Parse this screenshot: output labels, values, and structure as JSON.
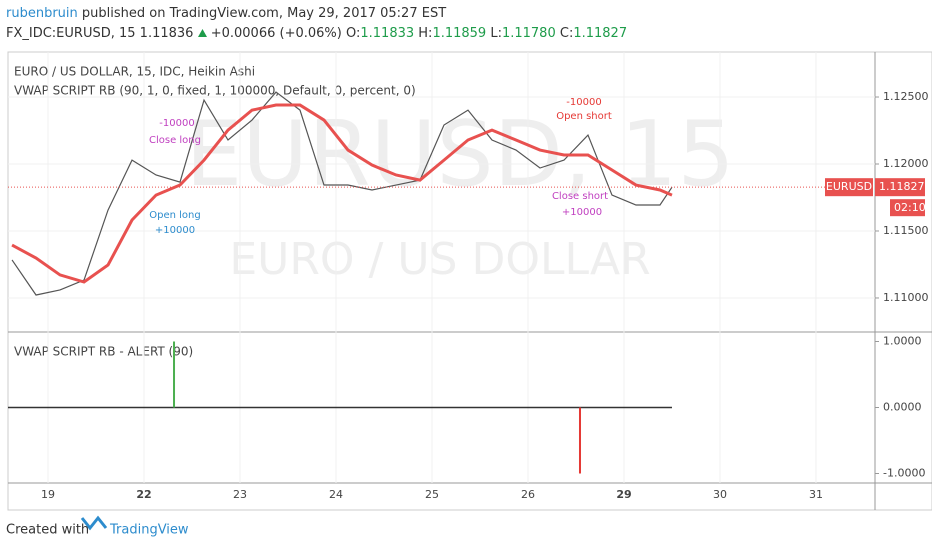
{
  "header": {
    "author": "rubenbruin",
    "published": "published on TradingView.com, May 29, 2017 05:27 EST",
    "symbol": "FX_IDC:EURUSD, 15",
    "last": "1.11836",
    "change": "+0.00066 (+0.06%)",
    "open_label": "O:",
    "open": "1.11833",
    "high_label": "H:",
    "high": "1.11859",
    "low_label": "L:",
    "low": "1.11780",
    "close_label": "C:",
    "close": "1.11827"
  },
  "chart_data": [
    {
      "type": "line",
      "title": "EURO / US DOLLAR, 15, IDC, Heikin Ashi",
      "subtitle": "VWAP SCRIPT RB (90, 1, 0, fixed, 1, 100000, Default, 0, percent, 0)",
      "watermark": "EURUSD, 15",
      "watermark_name": "EURO / US DOLLAR",
      "x": [
        -0.375,
        -0.125,
        0.125,
        0.375,
        0.625,
        0.875,
        1.125,
        1.375,
        1.625,
        1.875,
        2.125,
        2.375,
        2.625,
        2.875,
        3.125,
        3.375,
        3.625,
        3.875,
        4.125,
        4.375,
        4.625,
        4.875,
        5.125,
        5.375,
        5.625,
        5.875,
        6.125,
        6.375,
        6.5
      ],
      "series": [
        {
          "color": "#555555",
          "values": [
            1.11284,
            1.11022,
            1.1106,
            1.11134,
            1.11656,
            1.12029,
            1.11918,
            1.11865,
            1.12477,
            1.12179,
            1.12328,
            1.12537,
            1.12402,
            1.11843,
            1.11843,
            1.11806,
            1.11843,
            1.1188,
            1.12291,
            1.12402,
            1.12179,
            1.12104,
            1.1197,
            1.12029,
            1.12216,
            1.11768,
            1.11694,
            1.11694,
            1.11827
          ]
        },
        {
          "color": "#e8514f",
          "values": [
            1.11395,
            1.11298,
            1.11172,
            1.11119,
            1.11246,
            1.11582,
            1.11768,
            1.11843,
            1.12029,
            1.12253,
            1.12402,
            1.1244,
            1.1244,
            1.12328,
            1.12104,
            1.11992,
            1.11918,
            1.1188,
            1.12029,
            1.12179,
            1.12253,
            1.12179,
            1.12104,
            1.12067,
            1.12067,
            1.11955,
            1.11843,
            1.11806,
            1.11768
          ]
        }
      ],
      "xlim": [
        -0.417,
        8.615
      ],
      "xticks": [
        {
          "value": 0,
          "label": "19"
        },
        {
          "value": 1,
          "label": "22"
        },
        {
          "value": 2,
          "label": "23"
        },
        {
          "value": 3,
          "label": "24"
        },
        {
          "value": 4,
          "label": "25"
        },
        {
          "value": 5,
          "label": "26"
        },
        {
          "value": 6,
          "label": "29"
        },
        {
          "value": 7,
          "label": "30"
        },
        {
          "value": 8,
          "label": "31"
        }
      ],
      "ylim": [
        1.10746,
        1.12836
      ],
      "yticks": [
        {
          "value": 1.11,
          "label": "1.11000"
        },
        {
          "value": 1.115,
          "label": "1.11500"
        },
        {
          "value": 1.12,
          "label": "1.12000"
        },
        {
          "value": 1.125,
          "label": "1.12500"
        }
      ],
      "grid": true,
      "last_price": 1.11827,
      "last_symbol": "EURUSD",
      "countdown": "02:10",
      "annotations": [
        "-10000",
        "Close long",
        "Open long",
        "+10000",
        "-10000",
        "Open short",
        "Close short",
        "+10000"
      ]
    },
    {
      "type": "bar",
      "title": "VWAP SCRIPT RB - ALERT (90)",
      "x": [
        1.3125,
        5.5417
      ],
      "values": [
        1,
        -1
      ],
      "colors": [
        "#4caf50",
        "#e53935"
      ],
      "xlim": [
        -0.417,
        8.615
      ],
      "ylim": [
        -1.144,
        1.144
      ],
      "yticks": [
        {
          "value": 1,
          "label": "1.0000"
        },
        {
          "value": 0,
          "label": "0.0000"
        },
        {
          "value": -1,
          "label": "-1.0000"
        }
      ]
    }
  ],
  "footer": {
    "created": "Created with",
    "brand": "TradingView"
  }
}
